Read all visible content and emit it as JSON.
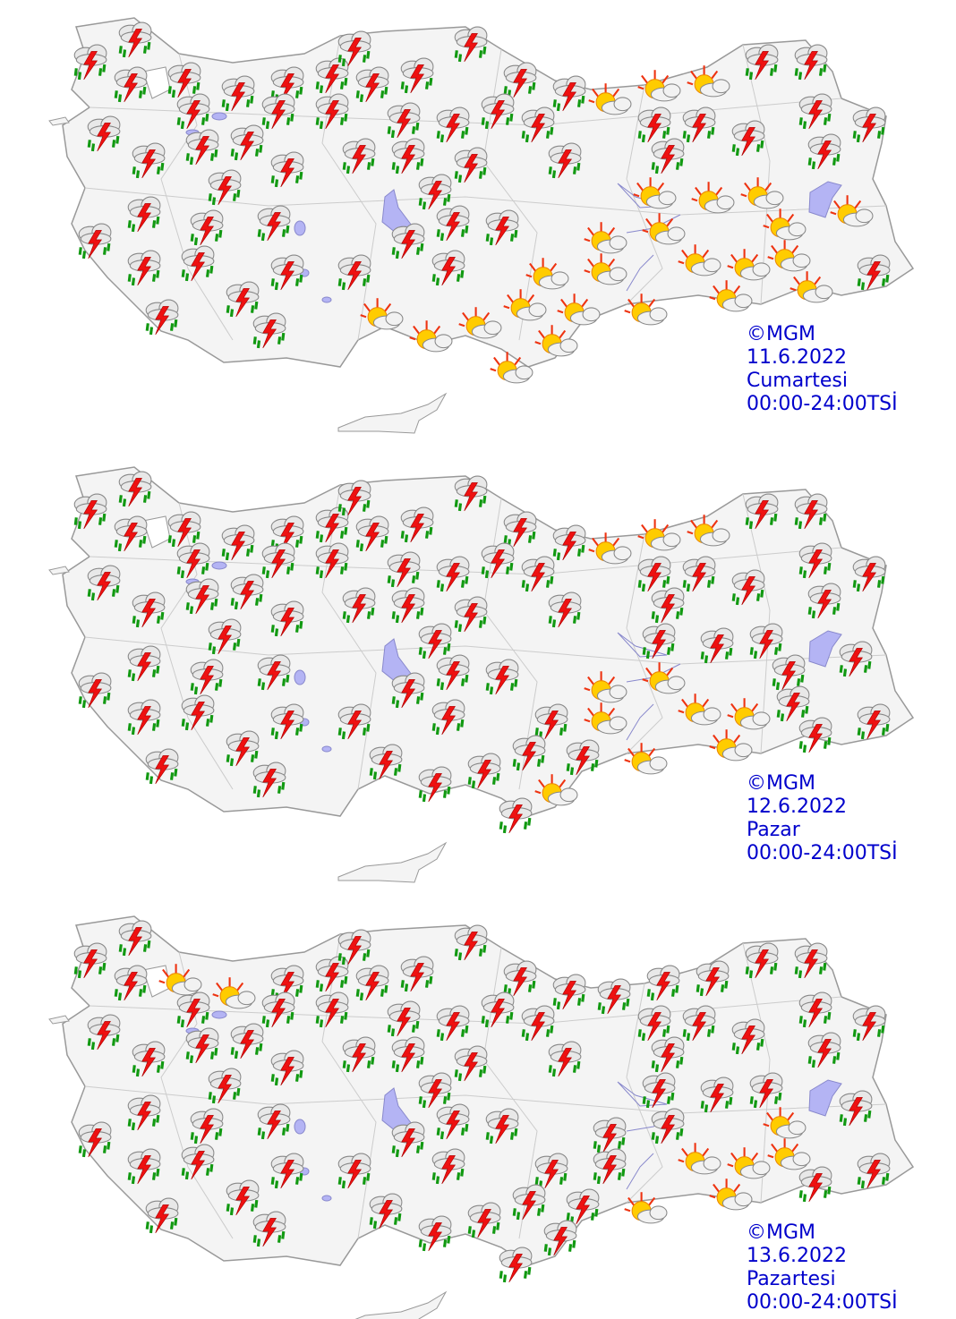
{
  "maps": [
    {
      "credit": "©MGM",
      "date": "11.6.2022",
      "day": "Cumartesi",
      "time": "00:00-24:00TSİ"
    },
    {
      "credit": "©MGM",
      "date": "12.6.2022",
      "day": "Pazar",
      "time": "00:00-24:00TSİ"
    },
    {
      "credit": "©MGM",
      "date": "13.6.2022",
      "day": "Pazartesi",
      "time": "00:00-24:00TSİ"
    }
  ]
}
